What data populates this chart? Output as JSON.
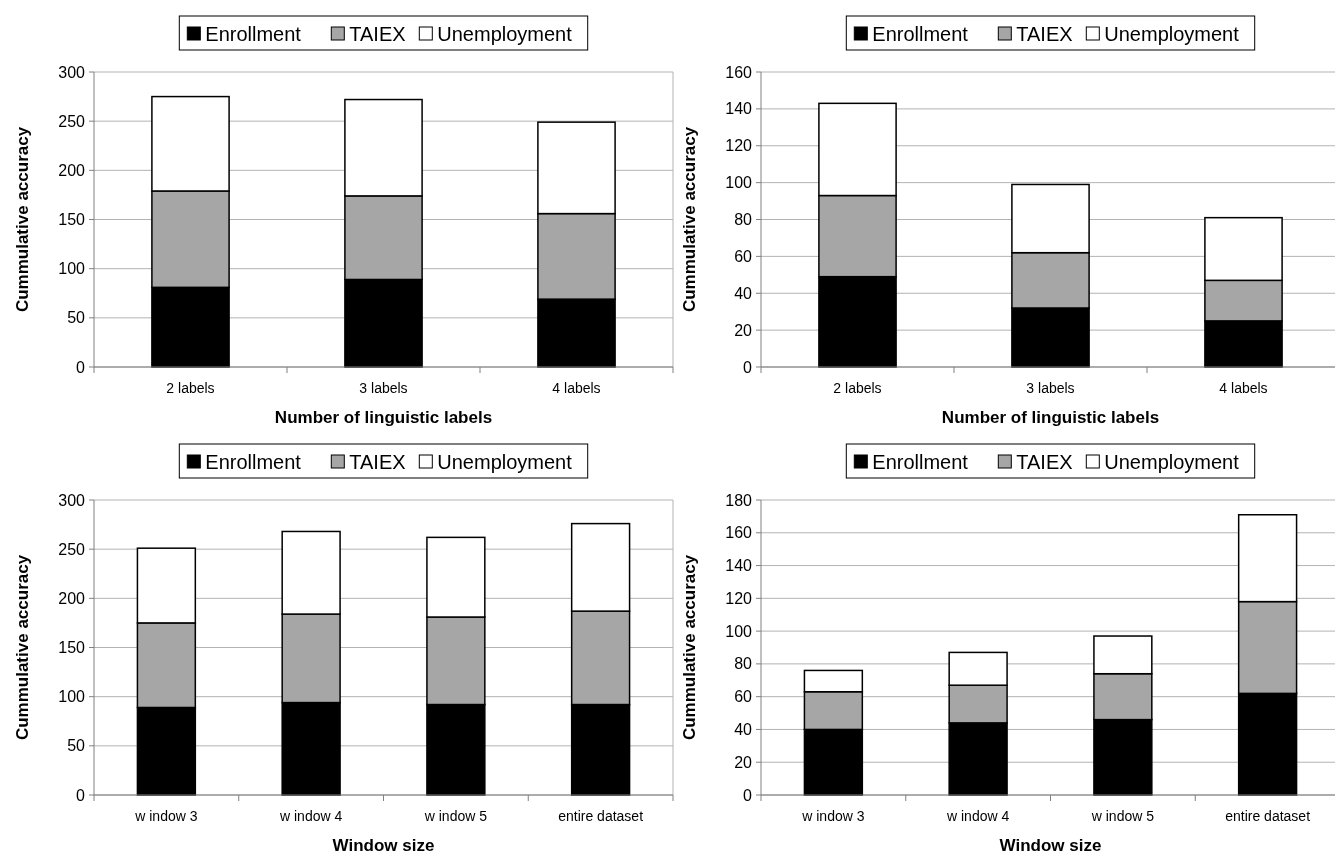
{
  "chart_data": [
    {
      "type": "bar",
      "stacked": true,
      "xlabel": "Number of linguistic labels",
      "ylabel": "Cummulative accuracy",
      "categories": [
        "2 labels",
        "3 labels",
        "4 labels"
      ],
      "ylim": [
        0,
        300
      ],
      "yticks": [
        0,
        50,
        100,
        150,
        200,
        250,
        300
      ],
      "grid": "y",
      "legend": "top",
      "series": [
        {
          "name": "Enrollment",
          "color": "#000000",
          "values": [
            81,
            89,
            69
          ]
        },
        {
          "name": "TAIEX",
          "color": "#a6a6a6",
          "values": [
            98,
            85,
            87
          ]
        },
        {
          "name": "Unemployment",
          "color": "#ffffff",
          "values": [
            96,
            98,
            93
          ]
        }
      ]
    },
    {
      "type": "bar",
      "stacked": true,
      "xlabel": "Number of linguistic labels",
      "ylabel": "Cummulative accuracy",
      "categories": [
        "2 labels",
        "3 labels",
        "4 labels"
      ],
      "ylim": [
        0,
        160
      ],
      "yticks": [
        0,
        20,
        40,
        60,
        80,
        100,
        120,
        140,
        160
      ],
      "grid": "y",
      "legend": "top",
      "series": [
        {
          "name": "Enrollment",
          "color": "#000000",
          "values": [
            49,
            32,
            25
          ]
        },
        {
          "name": "TAIEX",
          "color": "#a6a6a6",
          "values": [
            44,
            30,
            22
          ]
        },
        {
          "name": "Unemployment",
          "color": "#ffffff",
          "values": [
            50,
            37,
            34
          ]
        }
      ]
    },
    {
      "type": "bar",
      "stacked": true,
      "xlabel": "Window size",
      "ylabel": "Cummulative accuracy",
      "categories": [
        "w indow 3",
        "w indow 4",
        "w indow 5",
        "entire dataset"
      ],
      "ylim": [
        0,
        300
      ],
      "yticks": [
        0,
        50,
        100,
        150,
        200,
        250,
        300
      ],
      "grid": "y",
      "legend": "top",
      "series": [
        {
          "name": "Enrollment",
          "color": "#000000",
          "values": [
            89,
            94,
            92,
            92
          ]
        },
        {
          "name": "TAIEX",
          "color": "#a6a6a6",
          "values": [
            86,
            90,
            89,
            95
          ]
        },
        {
          "name": "Unemployment",
          "color": "#ffffff",
          "values": [
            76,
            84,
            81,
            89
          ]
        }
      ]
    },
    {
      "type": "bar",
      "stacked": true,
      "xlabel": "Window size",
      "ylabel": "Cummulative accuracy",
      "categories": [
        "w indow 3",
        "w indow 4",
        "w indow 5",
        "entire dataset"
      ],
      "ylim": [
        0,
        180
      ],
      "yticks": [
        0,
        20,
        40,
        60,
        80,
        100,
        120,
        140,
        160,
        180
      ],
      "grid": "y",
      "legend": "top",
      "series": [
        {
          "name": "Enrollment",
          "color": "#000000",
          "values": [
            40,
            44,
            46,
            62
          ]
        },
        {
          "name": "TAIEX",
          "color": "#a6a6a6",
          "values": [
            23,
            23,
            28,
            56
          ]
        },
        {
          "name": "Unemployment",
          "color": "#ffffff",
          "values": [
            13,
            20,
            23,
            53
          ]
        }
      ]
    }
  ]
}
